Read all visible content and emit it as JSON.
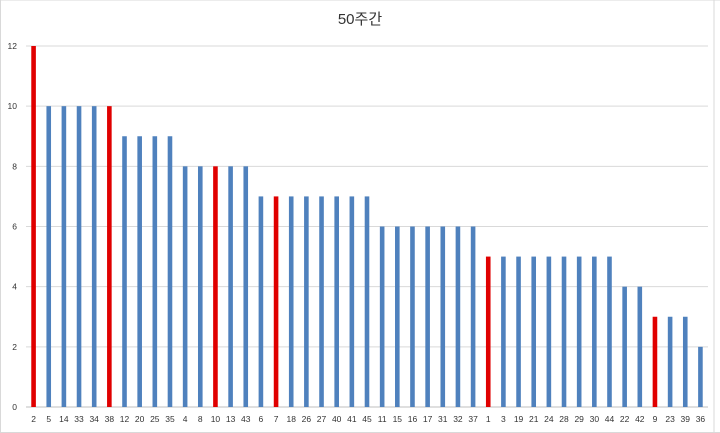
{
  "chart_data": {
    "type": "bar",
    "title": "50주간",
    "xlabel": "",
    "ylabel": "",
    "ylim": [
      0,
      12
    ],
    "yticks": [
      0,
      2,
      4,
      6,
      8,
      10,
      12
    ],
    "grid": true,
    "legend": "none",
    "categories": [
      "2",
      "5",
      "14",
      "33",
      "34",
      "38",
      "12",
      "20",
      "25",
      "35",
      "4",
      "8",
      "10",
      "13",
      "43",
      "6",
      "7",
      "18",
      "26",
      "27",
      "40",
      "41",
      "45",
      "11",
      "15",
      "16",
      "17",
      "31",
      "32",
      "37",
      "1",
      "3",
      "19",
      "21",
      "24",
      "28",
      "29",
      "30",
      "44",
      "22",
      "42",
      "9",
      "23",
      "39",
      "36"
    ],
    "values": [
      12,
      10,
      10,
      10,
      10,
      10,
      9,
      9,
      9,
      9,
      8,
      8,
      8,
      8,
      8,
      7,
      7,
      7,
      7,
      7,
      7,
      7,
      7,
      6,
      6,
      6,
      6,
      6,
      6,
      6,
      5,
      5,
      5,
      5,
      5,
      5,
      5,
      5,
      5,
      4,
      4,
      3,
      3,
      3,
      2
    ],
    "highlighted": [
      "2",
      "38",
      "10",
      "7",
      "1",
      "9"
    ],
    "colors": {
      "default": "#4f81bd",
      "highlight": "#e00000",
      "grid": "#d9d9d9",
      "text": "#333333"
    }
  }
}
